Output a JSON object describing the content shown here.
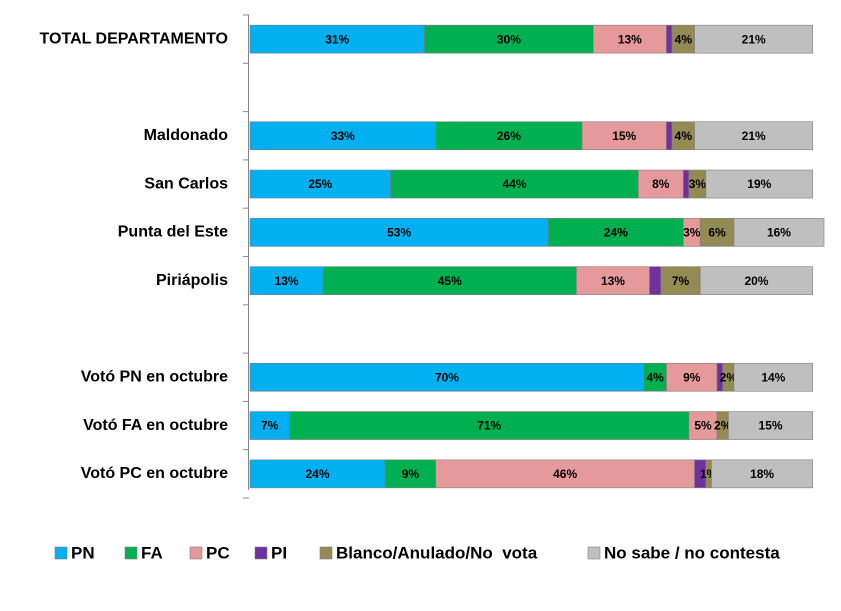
{
  "chart_data": {
    "type": "stacked_barh",
    "categories": [
      "TOTAL DEPARTAMENTO",
      null,
      "Maldonado",
      "San Carlos",
      "Punta del Este",
      "Piriápolis",
      null,
      "Votó PN en octubre",
      "Votó FA en octubre",
      "Votó PC en octubre"
    ],
    "xlim": [
      0,
      102
    ],
    "legend": "bottom",
    "series": [
      {
        "name": "PN",
        "color": "#00b0f0",
        "values": [
          31,
          null,
          33,
          25,
          53,
          13,
          null,
          70,
          7,
          24
        ],
        "value_labels": [
          "31%",
          null,
          "33%",
          "25%",
          "53%",
          "13%",
          null,
          "70%",
          "7%",
          "24%"
        ]
      },
      {
        "name": "FA",
        "color": "#00b050",
        "values": [
          30,
          null,
          26,
          44,
          24,
          45,
          null,
          4,
          71,
          9
        ],
        "value_labels": [
          "30%",
          null,
          "26%",
          "44%",
          "24%",
          "45%",
          null,
          "4%",
          "71%",
          "9%"
        ]
      },
      {
        "name": "PC",
        "color": "#e6999a",
        "values": [
          13,
          null,
          15,
          8,
          3,
          13,
          null,
          9,
          5,
          46
        ],
        "value_labels": [
          "13%",
          null,
          "15%",
          "8%",
          "3%",
          "13%",
          null,
          "9%",
          "5%",
          "46%"
        ]
      },
      {
        "name": "PI",
        "color": "#7030a0",
        "values": [
          1,
          null,
          1,
          1,
          null,
          2,
          null,
          1,
          null,
          2
        ],
        "value_labels": [
          null,
          null,
          null,
          null,
          null,
          null,
          null,
          null,
          null,
          null
        ]
      },
      {
        "name": "Blanco/Anulado/No  vota",
        "color": "#948a54",
        "values": [
          4,
          null,
          4,
          3,
          6,
          7,
          null,
          2,
          2,
          1
        ],
        "value_labels": [
          "4%",
          null,
          "4%",
          "3%",
          "6%",
          "7%",
          null,
          "2%",
          "2%",
          "1%"
        ]
      },
      {
        "name": "No sabe / no contesta",
        "color": "#bfbfbf",
        "values": [
          21,
          null,
          21,
          19,
          16,
          20,
          null,
          14,
          15,
          18
        ],
        "value_labels": [
          "21%",
          null,
          "21%",
          "19%",
          "16%",
          "20%",
          null,
          "14%",
          "15%",
          "18%"
        ]
      }
    ]
  }
}
